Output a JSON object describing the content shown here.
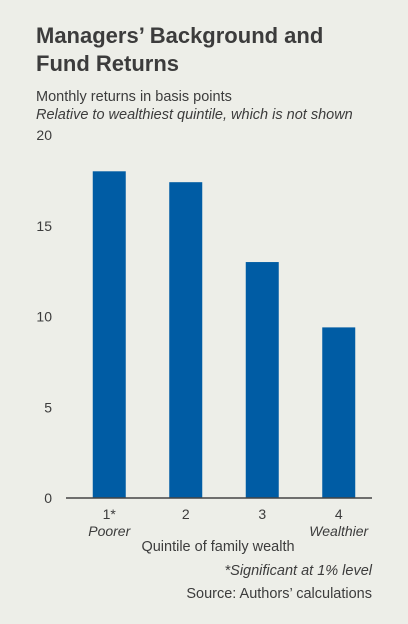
{
  "title": "Managers’ Background and Fund Returns",
  "subtitle": "Monthly returns in basis points",
  "subtitle2": "Relative to wealthiest quintile, which is not shown",
  "footnote": "*Significant at 1% level",
  "source": "Source: Authors’ calculations",
  "colors": {
    "bar": "#005ca4",
    "grid": "#cfcfcb",
    "axis": "#444444"
  },
  "chart_data": {
    "type": "bar",
    "categories": [
      "1*",
      "2",
      "3",
      "4"
    ],
    "category_sublabels": [
      "Poorer",
      "",
      "",
      "Wealthier"
    ],
    "values": [
      18.0,
      17.4,
      13.0,
      9.4
    ],
    "title": "Managers’ Background and Fund Returns",
    "subtitle": "Monthly returns in basis points",
    "xlabel": "Quintile of family wealth",
    "ylabel": "",
    "ylim": [
      0,
      20
    ],
    "yticks": [
      0,
      5,
      10,
      15,
      20
    ],
    "grid": false
  }
}
